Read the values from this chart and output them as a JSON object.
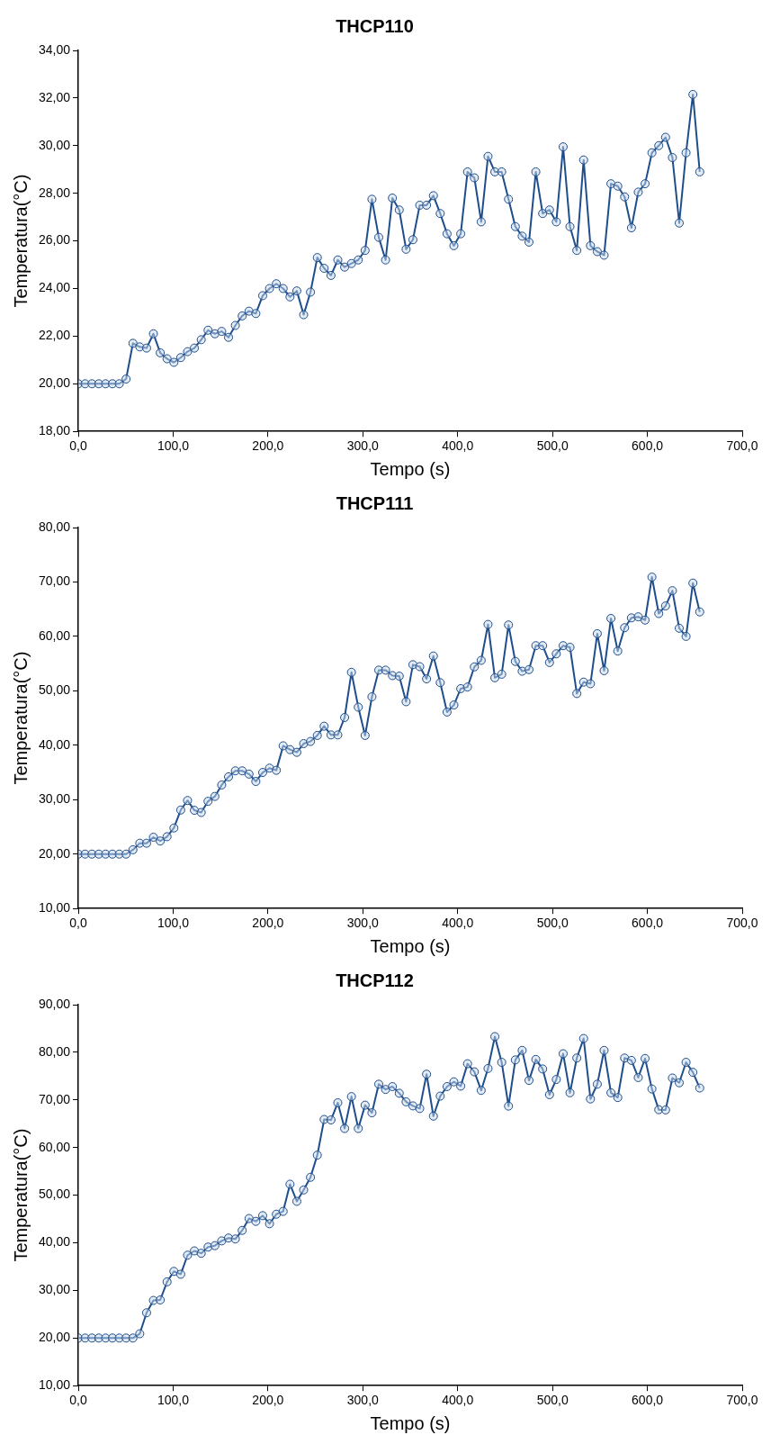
{
  "chart_data": [
    {
      "type": "line",
      "title": "THCP110",
      "xlabel": "Tempo (s)",
      "ylabel": "Temperatura(°C)",
      "marker": "circle",
      "line_style": "solid",
      "grid": false,
      "legend": false,
      "x": [
        0,
        7.2,
        14.4,
        21.6,
        28.8,
        36,
        43.2,
        50.4,
        57.6,
        64.8,
        72,
        79.2,
        86.4,
        93.6,
        100.8,
        108,
        115.2,
        122.4,
        129.6,
        136.8,
        144,
        151.2,
        158.4,
        165.6,
        172.8,
        180,
        187.2,
        194.4,
        201.6,
        208.8,
        216,
        223.2,
        230.4,
        237.6,
        244.8,
        252,
        259.2,
        266.4,
        273.6,
        280.8,
        288,
        295.2,
        302.4,
        309.6,
        316.8,
        324,
        331.2,
        338.4,
        345.6,
        352.8,
        360,
        367.2,
        374.4,
        381.6,
        388.8,
        396,
        403.2,
        410.4,
        417.6,
        424.8,
        432,
        439.2,
        446.4,
        453.6,
        460.8,
        468,
        475.2,
        482.4,
        489.6,
        496.8,
        504,
        511.2,
        518.4,
        525.6,
        532.8,
        540,
        547.2,
        554.4,
        561.6,
        568.8,
        576,
        583.2,
        590.4,
        597.6,
        604.8,
        612,
        619.2,
        626.4,
        633.6,
        640.8,
        648,
        655.2
      ],
      "series": [
        {
          "color": "#1f4e8c",
          "values": [
            20,
            20,
            20,
            20,
            20,
            20,
            20,
            20.2,
            21.7,
            21.55,
            21.5,
            22.1,
            21.3,
            21.05,
            20.9,
            21.1,
            21.35,
            21.5,
            21.85,
            22.25,
            22.1,
            22.2,
            21.95,
            22.45,
            22.85,
            23.05,
            22.95,
            23.7,
            24,
            24.2,
            24,
            23.65,
            23.9,
            22.9,
            23.85,
            25.3,
            24.85,
            24.55,
            25.2,
            24.9,
            25.05,
            25.2,
            25.6,
            27.75,
            26.15,
            25.2,
            27.8,
            27.3,
            25.65,
            26.05,
            27.5,
            27.5,
            27.9,
            27.15,
            26.3,
            25.8,
            26.3,
            28.9,
            28.65,
            26.8,
            29.55,
            28.9,
            28.9,
            27.75,
            26.6,
            26.2,
            25.95,
            28.9,
            27.15,
            27.3,
            26.8,
            29.95,
            26.6,
            25.6,
            29.4,
            25.8,
            25.55,
            25.4,
            28.4,
            28.3,
            27.85,
            26.55,
            28.05,
            28.4,
            29.7,
            30,
            30.35,
            29.5,
            26.75,
            29.7,
            32.15,
            28.9
          ]
        }
      ],
      "xlim": [
        0,
        700
      ],
      "xticks": [
        {
          "value": 0,
          "label": "0,0"
        },
        {
          "value": 100,
          "label": "100,0"
        },
        {
          "value": 200,
          "label": "200,0"
        },
        {
          "value": 300,
          "label": "300,0"
        },
        {
          "value": 400,
          "label": "400,0"
        },
        {
          "value": 500,
          "label": "500,0"
        },
        {
          "value": 600,
          "label": "600,0"
        },
        {
          "value": 700,
          "label": "700,0"
        }
      ],
      "ylim": [
        18,
        34
      ],
      "yticks": [
        {
          "value": 18,
          "label": "18,00"
        },
        {
          "value": 20,
          "label": "20,00"
        },
        {
          "value": 22,
          "label": "22,00"
        },
        {
          "value": 24,
          "label": "24,00"
        },
        {
          "value": 26,
          "label": "26,00"
        },
        {
          "value": 28,
          "label": "28,00"
        },
        {
          "value": 30,
          "label": "30,00"
        },
        {
          "value": 32,
          "label": "32,00"
        },
        {
          "value": 34,
          "label": "34,00"
        }
      ]
    },
    {
      "type": "line",
      "title": "THCP111",
      "xlabel": "Tempo (s)",
      "ylabel": "Temperatura(°C)",
      "marker": "circle",
      "line_style": "solid",
      "grid": false,
      "legend": false,
      "x": [
        0,
        7.2,
        14.4,
        21.6,
        28.8,
        36,
        43.2,
        50.4,
        57.6,
        64.8,
        72,
        79.2,
        86.4,
        93.6,
        100.8,
        108,
        115.2,
        122.4,
        129.6,
        136.8,
        144,
        151.2,
        158.4,
        165.6,
        172.8,
        180,
        187.2,
        194.4,
        201.6,
        208.8,
        216,
        223.2,
        230.4,
        237.6,
        244.8,
        252,
        259.2,
        266.4,
        273.6,
        280.8,
        288,
        295.2,
        302.4,
        309.6,
        316.8,
        324,
        331.2,
        338.4,
        345.6,
        352.8,
        360,
        367.2,
        374.4,
        381.6,
        388.8,
        396,
        403.2,
        410.4,
        417.6,
        424.8,
        432,
        439.2,
        446.4,
        453.6,
        460.8,
        468,
        475.2,
        482.4,
        489.6,
        496.8,
        504,
        511.2,
        518.4,
        525.6,
        532.8,
        540,
        547.2,
        554.4,
        561.6,
        568.8,
        576,
        583.2,
        590.4,
        597.6,
        604.8,
        612,
        619.2,
        626.4,
        633.6,
        640.8,
        648,
        655.2
      ],
      "series": [
        {
          "color": "#1f4e8c",
          "values": [
            20,
            20,
            20,
            20,
            20,
            20,
            20,
            20,
            20.8,
            22,
            22,
            23.1,
            22.4,
            23.2,
            24.8,
            28.1,
            29.85,
            28.05,
            27.65,
            29.7,
            30.6,
            32.7,
            34.2,
            35.3,
            35.3,
            34.7,
            33.35,
            35,
            35.8,
            35.4,
            39.9,
            39.2,
            38.7,
            40.3,
            40.7,
            41.8,
            43.5,
            41.9,
            41.9,
            45.1,
            53.4,
            47,
            41.8,
            48.9,
            53.8,
            53.8,
            52.8,
            52.7,
            48,
            54.8,
            54.45,
            52.2,
            56.4,
            51.5,
            46.1,
            47.4,
            50.4,
            50.7,
            54.4,
            55.6,
            62.2,
            52.4,
            53.05,
            62.1,
            55.4,
            53.6,
            53.9,
            58.3,
            58.3,
            55.2,
            56.8,
            58.3,
            58,
            49.5,
            51.6,
            51.3,
            60.5,
            53.7,
            63.3,
            57.3,
            61.6,
            63.4,
            63.6,
            63,
            70.9,
            64.2,
            65.6,
            68.4,
            61.5,
            60,
            69.8,
            64.5
          ]
        }
      ],
      "xlim": [
        0,
        700
      ],
      "xticks": [
        {
          "value": 0,
          "label": "0,0"
        },
        {
          "value": 100,
          "label": "100,0"
        },
        {
          "value": 200,
          "label": "200,0"
        },
        {
          "value": 300,
          "label": "300,0"
        },
        {
          "value": 400,
          "label": "400,0"
        },
        {
          "value": 500,
          "label": "500,0"
        },
        {
          "value": 600,
          "label": "600,0"
        },
        {
          "value": 700,
          "label": "700,0"
        }
      ],
      "ylim": [
        10,
        80
      ],
      "yticks": [
        {
          "value": 10,
          "label": "10,00"
        },
        {
          "value": 20,
          "label": "20,00"
        },
        {
          "value": 30,
          "label": "30,00"
        },
        {
          "value": 40,
          "label": "40,00"
        },
        {
          "value": 50,
          "label": "50,00"
        },
        {
          "value": 60,
          "label": "60,00"
        },
        {
          "value": 70,
          "label": "70,00"
        },
        {
          "value": 80,
          "label": "80,00"
        }
      ]
    },
    {
      "type": "line",
      "title": "THCP112",
      "xlabel": "Tempo (s)",
      "ylabel": "Temperatura(°C)",
      "marker": "circle",
      "line_style": "solid",
      "grid": false,
      "legend": false,
      "x": [
        0,
        7.2,
        14.4,
        21.6,
        28.8,
        36,
        43.2,
        50.4,
        57.6,
        64.8,
        72,
        79.2,
        86.4,
        93.6,
        100.8,
        108,
        115.2,
        122.4,
        129.6,
        136.8,
        144,
        151.2,
        158.4,
        165.6,
        172.8,
        180,
        187.2,
        194.4,
        201.6,
        208.8,
        216,
        223.2,
        230.4,
        237.6,
        244.8,
        252,
        259.2,
        266.4,
        273.6,
        280.8,
        288,
        295.2,
        302.4,
        309.6,
        316.8,
        324,
        331.2,
        338.4,
        345.6,
        352.8,
        360,
        367.2,
        374.4,
        381.6,
        388.8,
        396,
        403.2,
        410.4,
        417.6,
        424.8,
        432,
        439.2,
        446.4,
        453.6,
        460.8,
        468,
        475.2,
        482.4,
        489.6,
        496.8,
        504,
        511.2,
        518.4,
        525.6,
        532.8,
        540,
        547.2,
        554.4,
        561.6,
        568.8,
        576,
        583.2,
        590.4,
        597.6,
        604.8,
        612,
        619.2,
        626.4,
        633.6,
        640.8,
        648,
        655.2
      ],
      "series": [
        {
          "color": "#1f4e8c",
          "values": [
            20,
            20,
            20,
            20,
            20,
            20,
            20,
            20,
            20,
            20.9,
            25.3,
            27.9,
            28,
            31.8,
            34,
            33.4,
            37.4,
            38.3,
            37.8,
            39.1,
            39.4,
            40.4,
            41,
            40.8,
            42.6,
            45.1,
            44.5,
            45.7,
            44,
            46,
            46.6,
            52.3,
            48.7,
            51.1,
            53.75,
            58.4,
            65.9,
            65.8,
            69.4,
            64,
            70.7,
            64,
            68.9,
            67.3,
            73.3,
            72.2,
            72.8,
            71.4,
            69.6,
            68.75,
            68.2,
            75.4,
            66.6,
            70.8,
            72.8,
            73.8,
            72.9,
            77.6,
            75.9,
            72,
            76.6,
            83.3,
            77.9,
            68.7,
            78.4,
            80.4,
            74.1,
            78.5,
            76.5,
            71.1,
            74.3,
            79.7,
            71.5,
            78.8,
            82.9,
            70.2,
            73.3,
            80.4,
            71.5,
            70.5,
            78.8,
            78.3,
            74.7,
            78.7,
            72.3,
            67.95,
            67.9,
            74.6,
            73.6,
            77.9,
            75.8,
            72.5
          ]
        }
      ],
      "xlim": [
        0,
        700
      ],
      "xticks": [
        {
          "value": 0,
          "label": "0,0"
        },
        {
          "value": 100,
          "label": "100,0"
        },
        {
          "value": 200,
          "label": "200,0"
        },
        {
          "value": 300,
          "label": "300,0"
        },
        {
          "value": 400,
          "label": "400,0"
        },
        {
          "value": 500,
          "label": "500,0"
        },
        {
          "value": 600,
          "label": "600,0"
        },
        {
          "value": 700,
          "label": "700,0"
        }
      ],
      "ylim": [
        10,
        90
      ],
      "yticks": [
        {
          "value": 10,
          "label": "10,00"
        },
        {
          "value": 20,
          "label": "20,00"
        },
        {
          "value": 30,
          "label": "30,00"
        },
        {
          "value": 40,
          "label": "40,00"
        },
        {
          "value": 50,
          "label": "50,00"
        },
        {
          "value": 60,
          "label": "60,00"
        },
        {
          "value": 70,
          "label": "70,00"
        },
        {
          "value": 80,
          "label": "80,00"
        },
        {
          "value": 90,
          "label": "90,00"
        }
      ]
    }
  ]
}
